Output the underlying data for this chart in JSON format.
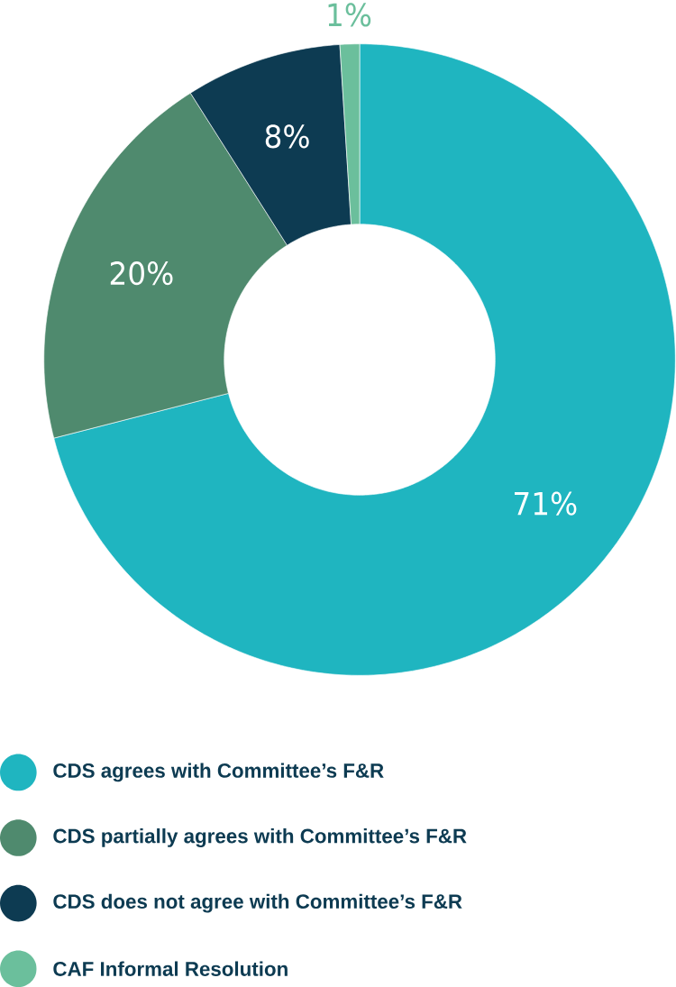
{
  "chart_data": {
    "type": "donut",
    "categories": [
      "CDS agrees with Committee’s F&R",
      "CDS partially agrees with Committee’s F&R",
      "CDS does not agree with Committee’s F&R",
      "CAF Informal Resolution"
    ],
    "values": [
      71,
      20,
      8,
      1
    ],
    "colors": [
      "#1fb5c0",
      "#4f8a6e",
      "#0d3b52",
      "#6bbf9c"
    ],
    "value_labels": [
      "71%",
      "20%",
      "8%",
      "1%"
    ],
    "legend": "bottom"
  }
}
